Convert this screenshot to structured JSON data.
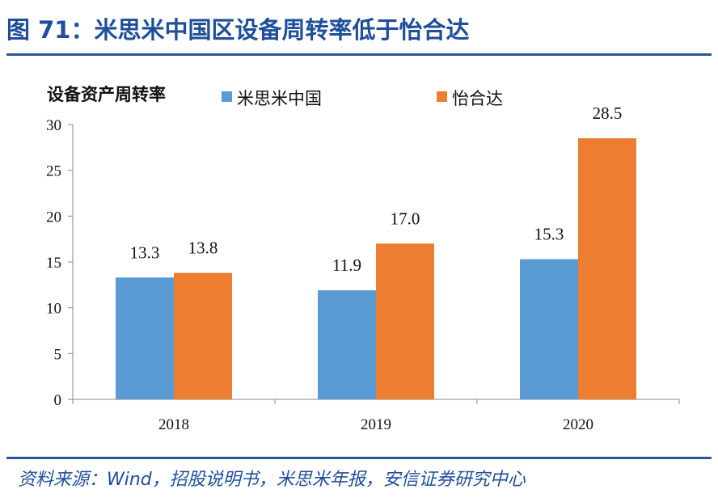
{
  "figure": {
    "title": "图 71：米思米中国区设备周转率低于怡合达",
    "source": "资料来源：Wind，招股说明书，米思米年报，安信证券研究中心"
  },
  "colors": {
    "title": "#1f4e9a",
    "rule": "#2e5597"
  },
  "chart_data": {
    "type": "bar",
    "ylabel": "设备资产周转率",
    "xlabel": "",
    "categories": [
      "2018",
      "2019",
      "2020"
    ],
    "series": [
      {
        "name": "米思米中国",
        "values": [
          13.3,
          11.9,
          15.3
        ],
        "color": "#5b9bd5"
      },
      {
        "name": "怡合达",
        "values": [
          13.8,
          17.0,
          28.5
        ],
        "color": "#ed7d31"
      }
    ],
    "data_labels": [
      [
        "13.3",
        "11.9",
        "15.3"
      ],
      [
        "13.8",
        "17.0",
        "28.5"
      ]
    ],
    "ylim": [
      0,
      30
    ],
    "yticks": [
      0,
      5,
      10,
      15,
      20,
      25,
      30
    ],
    "grid": false,
    "legend": "top"
  }
}
